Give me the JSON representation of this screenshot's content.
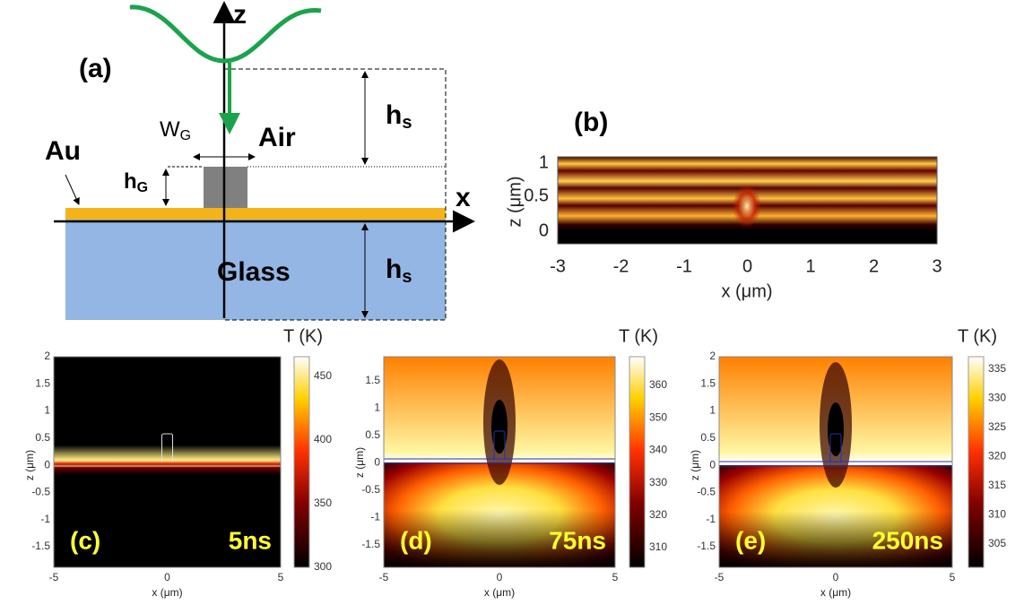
{
  "panel_a": {
    "label": "(a)",
    "axis_z": "z",
    "axis_x": "x",
    "air": "Air",
    "glass": "Glass",
    "au": "Au",
    "w_g": {
      "main": "W",
      "sub": "G"
    },
    "h_g": {
      "main": "h",
      "sub": "G"
    },
    "h_s_top": {
      "main": "h",
      "sub": "s"
    },
    "h_s_bottom": {
      "main": "h",
      "sub": "s"
    }
  },
  "panel_b": {
    "label": "(b)",
    "y_label": "z (μm)",
    "x_label": "x (μm)",
    "yticks": [
      "1",
      "0.5",
      "0"
    ],
    "xticks": [
      "-3",
      "-2",
      "-1",
      "0",
      "1",
      "2",
      "3"
    ]
  },
  "panels": [
    {
      "label": "(c)",
      "time": "5ns",
      "colorbar_title": "T (K)",
      "colorbar_ticks": [
        "450",
        "400",
        "350",
        "300"
      ],
      "yticks": [
        "2",
        "1.5",
        "1",
        "0.5",
        "0",
        "-0.5",
        "-1",
        "-1.5"
      ],
      "xticks": [
        "-5",
        "0",
        "5"
      ],
      "x_label": "x (μm)",
      "y_label": "z (μm)"
    },
    {
      "label": "(d)",
      "time": "75ns",
      "colorbar_title": "T (K)",
      "colorbar_ticks": [
        "360",
        "350",
        "340",
        "330",
        "320",
        "310"
      ],
      "yticks": [
        "1.5",
        "1",
        "0.5",
        "0",
        "-0.5",
        "-1",
        "-1.5"
      ],
      "xticks": [
        "-5",
        "0",
        "5"
      ],
      "x_label": "x (μm)",
      "y_label": "z (μm)"
    },
    {
      "label": "(e)",
      "time": "250ns",
      "colorbar_title": "T (K)",
      "colorbar_ticks": [
        "335",
        "330",
        "325",
        "320",
        "315",
        "310",
        "305"
      ],
      "yticks": [
        "2",
        "1.5",
        "1",
        "0.5",
        "0",
        "-0.5",
        "-1",
        "-1.5"
      ],
      "xticks": [
        "-5",
        "0",
        "5"
      ],
      "x_label": "x (μm)",
      "y_label": "z (μm)"
    }
  ]
}
